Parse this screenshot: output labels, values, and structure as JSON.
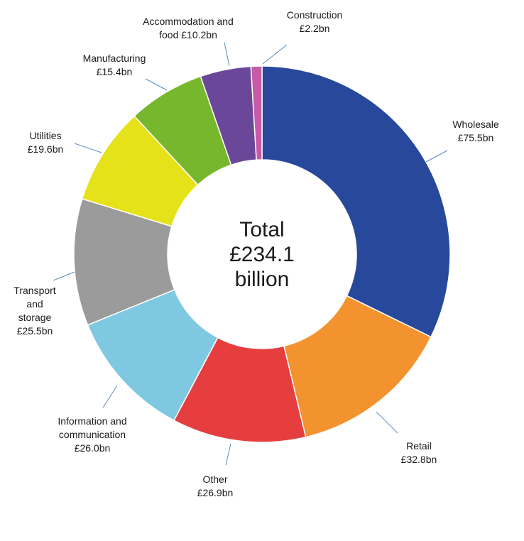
{
  "chart_data": {
    "type": "pie",
    "center_label": [
      "Total",
      "£234.1",
      "billion"
    ],
    "slices": [
      {
        "label": [
          "Wholesale",
          "£75.5bn"
        ],
        "value": 75.5,
        "color": "#27489b"
      },
      {
        "label": [
          "Retail",
          "£32.8bn"
        ],
        "value": 32.8,
        "color": "#f39330"
      },
      {
        "label": [
          "Other",
          "£26.9bn"
        ],
        "value": 26.9,
        "color": "#e63e3f"
      },
      {
        "label": [
          "Information and",
          "communication",
          "£26.0bn"
        ],
        "value": 26.0,
        "color": "#7ec9e1"
      },
      {
        "label": [
          "Transport",
          "and",
          "storage",
          "£25.5bn"
        ],
        "value": 25.5,
        "color": "#9b9b9b"
      },
      {
        "label": [
          "Utilities",
          "£19.6bn"
        ],
        "value": 19.6,
        "color": "#e6e21a"
      },
      {
        "label": [
          "Manufacturing",
          "£15.4bn"
        ],
        "value": 15.4,
        "color": "#77b72d"
      },
      {
        "label": [
          "Accommodation and",
          "food £10.2bn"
        ],
        "value": 10.2,
        "color": "#6b4799"
      },
      {
        "label": [
          "Construction",
          "£2.2bn"
        ],
        "value": 2.2,
        "color": "#c75aa6"
      }
    ]
  }
}
